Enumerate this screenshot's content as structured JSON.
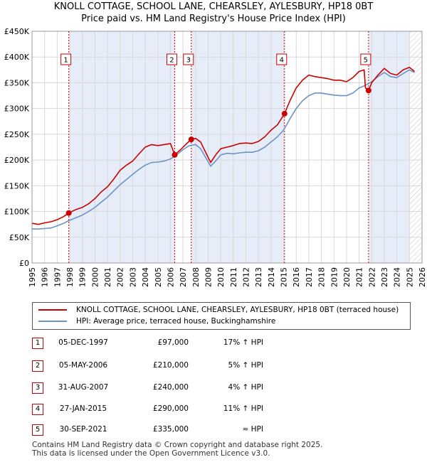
{
  "title": "KNOLL COTTAGE, SCHOOL LANE, CHEARSLEY, AYLESBURY, HP18 0BT",
  "subtitle": "Price paid vs. HM Land Registry's House Price Index (HPI)",
  "colors": {
    "property": "#cc0000",
    "hpi": "#6b93c8",
    "band": "#e6edf8",
    "grid": "#d8d8d8",
    "vline": "#cc0000"
  },
  "chart_data": {
    "type": "line",
    "xlim": [
      1995,
      2026
    ],
    "ylim": [
      0,
      450000
    ],
    "y_ticks": [
      0,
      50000,
      100000,
      150000,
      200000,
      250000,
      300000,
      350000,
      400000,
      450000
    ],
    "y_tick_labels": [
      "£0",
      "£50K",
      "£100K",
      "£150K",
      "£200K",
      "£250K",
      "£300K",
      "£350K",
      "£400K",
      "£450K"
    ],
    "x_ticks": [
      1995,
      1996,
      1997,
      1998,
      1999,
      2000,
      2001,
      2002,
      2003,
      2004,
      2005,
      2006,
      2007,
      2008,
      2009,
      2010,
      2011,
      2012,
      2013,
      2014,
      2015,
      2016,
      2017,
      2018,
      2019,
      2020,
      2021,
      2022,
      2023,
      2024,
      2025,
      2026
    ],
    "x_tick_labels": [
      "1995",
      "1996",
      "1997",
      "1998",
      "1999",
      "2000",
      "2001",
      "2002",
      "2003",
      "2004",
      "2005",
      "2006",
      "2007",
      "2008",
      "2009",
      "2010",
      "2011",
      "2012",
      "2013",
      "2014",
      "2015",
      "2016",
      "2017",
      "2018",
      "2019",
      "2020",
      "2021",
      "2022",
      "2023",
      "2024",
      "2025",
      "2026"
    ],
    "hatch_from": 2025.0,
    "series": [
      {
        "name": "KNOLL COTTAGE, SCHOOL LANE, CHEARSLEY, AYLESBURY, HP18 0BT (terraced house)",
        "x": [
          1995.0,
          1995.5,
          1996.0,
          1996.5,
          1997.0,
          1997.5,
          1997.92,
          1998.5,
          1999.0,
          1999.5,
          2000.0,
          2000.5,
          2001.0,
          2001.5,
          2002.0,
          2002.5,
          2003.0,
          2003.5,
          2004.0,
          2004.5,
          2005.0,
          2005.5,
          2006.0,
          2006.34,
          2006.8,
          2007.3,
          2007.66,
          2008.0,
          2008.4,
          2008.8,
          2009.2,
          2009.6,
          2010.0,
          2010.5,
          2011.0,
          2011.5,
          2012.0,
          2012.5,
          2013.0,
          2013.5,
          2014.0,
          2014.5,
          2015.07,
          2015.5,
          2016.0,
          2016.5,
          2017.0,
          2017.5,
          2018.0,
          2018.5,
          2019.0,
          2019.5,
          2020.0,
          2020.5,
          2021.0,
          2021.4,
          2021.5,
          2021.75,
          2022.0,
          2022.5,
          2023.0,
          2023.5,
          2024.0,
          2024.5,
          2025.0,
          2025.4
        ],
        "values": [
          77000,
          75000,
          78000,
          80000,
          84000,
          90000,
          97000,
          104000,
          108000,
          115000,
          125000,
          138000,
          148000,
          163000,
          180000,
          190000,
          198000,
          212000,
          225000,
          230000,
          228000,
          230000,
          232000,
          210000,
          220000,
          232000,
          240000,
          242000,
          235000,
          215000,
          195000,
          210000,
          222000,
          225000,
          228000,
          232000,
          233000,
          232000,
          236000,
          245000,
          258000,
          268000,
          290000,
          315000,
          340000,
          355000,
          365000,
          362000,
          360000,
          358000,
          355000,
          355000,
          352000,
          360000,
          372000,
          375000,
          340000,
          335000,
          350000,
          365000,
          378000,
          368000,
          365000,
          375000,
          380000,
          372000
        ]
      },
      {
        "name": "HPI: Average price, terraced house, Buckinghamshire",
        "x": [
          1995.0,
          1995.5,
          1996.0,
          1996.5,
          1997.0,
          1997.5,
          1998.0,
          1998.5,
          1999.0,
          1999.5,
          2000.0,
          2000.5,
          2001.0,
          2001.5,
          2002.0,
          2002.5,
          2003.0,
          2003.5,
          2004.0,
          2004.5,
          2005.0,
          2005.5,
          2006.0,
          2006.5,
          2007.0,
          2007.5,
          2008.0,
          2008.4,
          2008.8,
          2009.2,
          2009.6,
          2010.0,
          2010.5,
          2011.0,
          2011.5,
          2012.0,
          2012.5,
          2013.0,
          2013.5,
          2014.0,
          2014.5,
          2015.0,
          2015.5,
          2016.0,
          2016.5,
          2017.0,
          2017.5,
          2018.0,
          2018.5,
          2019.0,
          2019.5,
          2020.0,
          2020.5,
          2021.0,
          2021.5,
          2022.0,
          2022.5,
          2023.0,
          2023.5,
          2024.0,
          2024.5,
          2025.0,
          2025.4
        ],
        "values": [
          66000,
          66000,
          67000,
          68000,
          72000,
          77000,
          83000,
          88000,
          93000,
          100000,
          108000,
          118000,
          128000,
          140000,
          152000,
          162000,
          172000,
          182000,
          190000,
          195000,
          196000,
          198000,
          202000,
          210000,
          220000,
          228000,
          230000,
          222000,
          205000,
          188000,
          198000,
          210000,
          213000,
          212000,
          214000,
          215000,
          215000,
          218000,
          225000,
          235000,
          245000,
          258000,
          280000,
          300000,
          315000,
          325000,
          330000,
          330000,
          328000,
          326000,
          325000,
          325000,
          330000,
          340000,
          345000,
          352000,
          362000,
          370000,
          362000,
          360000,
          368000,
          375000,
          370000
        ]
      }
    ],
    "markers": [
      {
        "label": "1",
        "x": 1997.92,
        "value": 97000
      },
      {
        "label": "2",
        "x": 2006.34,
        "value": 210000
      },
      {
        "label": "3",
        "x": 2007.66,
        "value": 240000
      },
      {
        "label": "4",
        "x": 2015.07,
        "value": 290000
      },
      {
        "label": "5",
        "x": 2021.75,
        "value": 335000
      }
    ]
  },
  "legend": {
    "property_label": "KNOLL COTTAGE, SCHOOL LANE, CHEARSLEY, AYLESBURY, HP18 0BT (terraced house)",
    "hpi_label": "HPI: Average price, terraced house, Buckinghamshire"
  },
  "transactions": [
    {
      "num": "1",
      "date": "05-DEC-1997",
      "price": "£97,000",
      "hpi": "17% ↑ HPI"
    },
    {
      "num": "2",
      "date": "05-MAY-2006",
      "price": "£210,000",
      "hpi": "5% ↑ HPI"
    },
    {
      "num": "3",
      "date": "31-AUG-2007",
      "price": "£240,000",
      "hpi": "4% ↑ HPI"
    },
    {
      "num": "4",
      "date": "27-JAN-2015",
      "price": "£290,000",
      "hpi": "11% ↑ HPI"
    },
    {
      "num": "5",
      "date": "30-SEP-2021",
      "price": "£335,000",
      "hpi": "≈ HPI"
    }
  ],
  "footer": {
    "line1": "Contains HM Land Registry data © Crown copyright and database right 2025.",
    "line2": "This data is licensed under the Open Government Licence v3.0."
  }
}
